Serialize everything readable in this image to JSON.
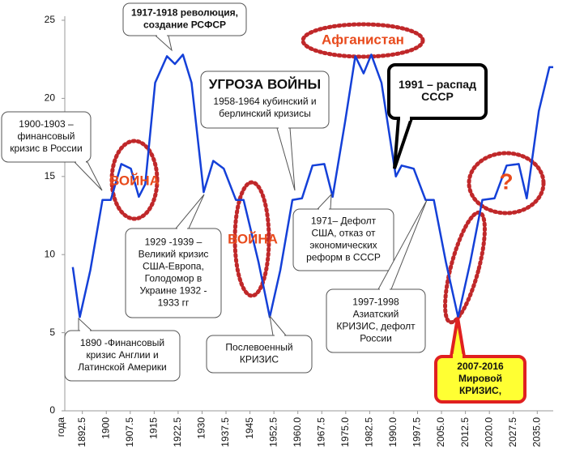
{
  "chart_data": {
    "type": "line",
    "xlabel": "года",
    "xlim": [
      1887,
      2040
    ],
    "ylim": [
      0,
      25
    ],
    "yticks": [
      0,
      5,
      10,
      15,
      20,
      25
    ],
    "xticks": [
      1892.5,
      1900,
      1907.5,
      1915,
      1922.5,
      1930,
      1937.5,
      1945,
      1952.5,
      {
        "value": 1960,
        "label": "1960.0"
      },
      1967.5,
      {
        "value": 1975,
        "label": "1975.0"
      },
      1982.5,
      {
        "value": 1990,
        "label": "1990.0"
      },
      1997.5,
      {
        "value": 2005,
        "label": "2005.0"
      },
      2012.5,
      {
        "value": 2020,
        "label": "2020.0"
      },
      2027.5,
      {
        "value": 2035,
        "label": "2035.0"
      }
    ],
    "series": [
      {
        "color": "#1440d8",
        "x": [
          1889.5,
          1891.7,
          1895,
          1898.8,
          1901.4,
          1904.7,
          1907.7,
          1910.2,
          1912.2,
          1915.3,
          1919,
          1921.5,
          1924,
          1926.7,
          1930.5,
          1933.5,
          1936.8,
          1940.6,
          1943,
          1947.7,
          1951.2,
          1954.5,
          1958.3,
          1961.3,
          1964.6,
          1968.3,
          1970.9,
          1974.8,
          1978,
          1980.6,
          1983,
          1986.2,
          1990.7,
          1992.5,
          1996.3,
          2000,
          2002.6,
          2006.4,
          2010.2,
          2014,
          2017.8,
          2021.6,
          2025.4,
          2029.2,
          2031.7,
          2035.5,
          2038.8,
          2040
        ],
        "values": [
          9.2,
          6,
          9,
          13.5,
          13.5,
          15.8,
          15.5,
          13.7,
          14.5,
          21,
          22.7,
          22.2,
          22.8,
          21,
          14,
          16,
          15.5,
          13.5,
          13.5,
          9.5,
          6,
          9,
          13.5,
          13.6,
          15.7,
          15.8,
          13.7,
          18.5,
          22.7,
          21.6,
          22.8,
          21,
          15,
          15.7,
          15.5,
          13.5,
          13.5,
          9.5,
          6,
          9.5,
          13.5,
          13.6,
          15.7,
          15.8,
          13.6,
          19.2,
          22,
          22
        ]
      }
    ],
    "annotations": [
      {
        "lines": [
          "1917-1918 революция,",
          "создание РСФСР"
        ]
      },
      {
        "lines": [
          "Афганистан"
        ]
      },
      {
        "lines": [
          "1900-1903 –",
          "финансовый",
          "кризис в России"
        ]
      },
      {
        "lines": [
          "ВОЙНА"
        ]
      },
      {
        "lines": [
          "УГРОЗА ВОЙНЫ",
          "1958-1964 кубинский и",
          "берлинский  кризисы"
        ]
      },
      {
        "lines": [
          "1991 – распад",
          "СССР"
        ]
      },
      {
        "lines": [
          "?"
        ]
      },
      {
        "lines": [
          "1929 -1939 –",
          "Великий кризис",
          "США-Европа,",
          "Голодомор в",
          "Украине 1932 -",
          "1933 гг"
        ]
      },
      {
        "lines": [
          "ВОЙНА"
        ]
      },
      {
        "lines": [
          "1971– Дефолт",
          "США, отказ от",
          "экономических",
          "реформ в СССР"
        ]
      },
      {
        "lines": [
          "1890 -Финансовый",
          "кризис Англии и",
          "Латинской Америки"
        ]
      },
      {
        "lines": [
          "Послевоенный",
          "КРИЗИС"
        ]
      },
      {
        "lines": [
          "1997-1998",
          "Азиатский",
          "КРИЗИС, дефолт",
          "России"
        ]
      },
      {
        "lines": [
          "2007-2016",
          "Мировой",
          "КРИЗИС,"
        ]
      }
    ]
  }
}
